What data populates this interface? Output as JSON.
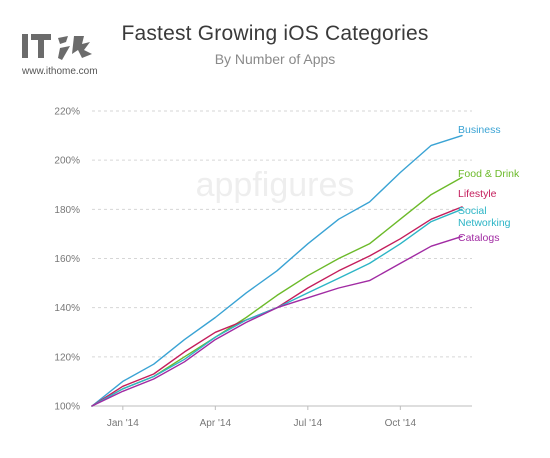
{
  "header": {
    "title": "Fastest Growing iOS Categories",
    "subtitle": "By Number of Apps"
  },
  "branding": {
    "logo_text": "IT之家",
    "site": "www.ithome.com",
    "watermark": "appfigures"
  },
  "chart_data": {
    "type": "line",
    "title": "Fastest Growing iOS Categories",
    "subtitle": "By Number of Apps",
    "xlabel": "",
    "ylabel": "",
    "x_ticks": [
      "Jan '14",
      "Apr '14",
      "Jul '14",
      "Oct '14"
    ],
    "x": [
      "2013-12",
      "2014-01",
      "2014-02",
      "2014-03",
      "2014-04",
      "2014-05",
      "2014-06",
      "2014-07",
      "2014-08",
      "2014-09",
      "2014-10",
      "2014-11",
      "2014-12"
    ],
    "y_ticks": [
      "100%",
      "120%",
      "140%",
      "160%",
      "180%",
      "200%",
      "220%"
    ],
    "ylim": [
      100,
      220
    ],
    "grid": true,
    "legend": "inline-right",
    "series": [
      {
        "name": "Business",
        "color": "#3aa3d4",
        "values": [
          100,
          110,
          117,
          127,
          136,
          146,
          155,
          166,
          176,
          183,
          195,
          206,
          210
        ]
      },
      {
        "name": "Food & Drink",
        "color": "#6cba2a",
        "values": [
          100,
          107,
          112,
          120,
          128,
          136,
          145,
          153,
          160,
          166,
          176,
          186,
          193
        ]
      },
      {
        "name": "Lifestyle",
        "color": "#c41e5c",
        "values": [
          100,
          108,
          113,
          122,
          130,
          135,
          140,
          148,
          155,
          161,
          168,
          176,
          181
        ]
      },
      {
        "name": "Social\nNetworking",
        "color": "#2cb5c6",
        "values": [
          100,
          107,
          112,
          119,
          128,
          135,
          140,
          146,
          152,
          158,
          166,
          175,
          180
        ]
      },
      {
        "name": "Catalogs",
        "color": "#a12ba3",
        "values": [
          100,
          106,
          111,
          118,
          127,
          134,
          140,
          144,
          148,
          151,
          158,
          165,
          169
        ]
      }
    ]
  }
}
